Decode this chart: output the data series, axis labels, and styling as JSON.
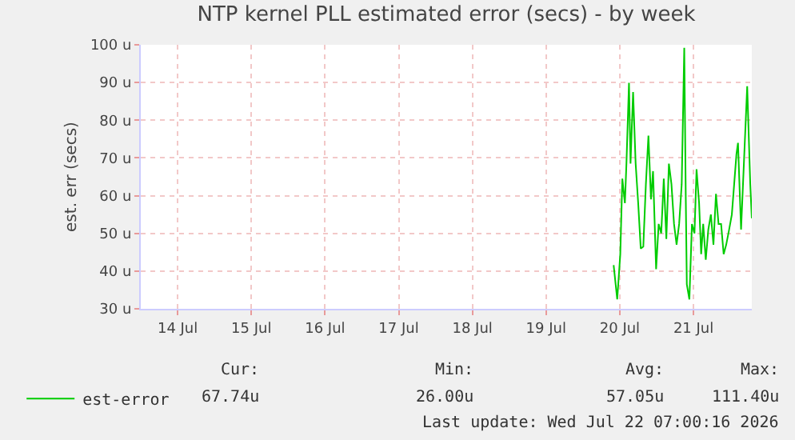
{
  "chart_data": {
    "type": "line",
    "title": "NTP kernel PLL estimated error (secs) - by week",
    "ylabel": "est. err (secs)",
    "x": [
      "2026-07-20T10:00",
      "2026-07-20T11:10",
      "2026-07-20T12:10",
      "2026-07-20T12:50",
      "2026-07-20T13:40",
      "2026-07-20T14:10",
      "2026-07-20T15:00",
      "2026-07-20T15:30",
      "2026-07-20T16:20",
      "2026-07-20T17:10",
      "2026-07-20T18:00",
      "2026-07-20T18:50",
      "2026-07-20T19:40",
      "2026-07-20T20:30",
      "2026-07-20T21:20",
      "2026-07-20T22:10",
      "2026-07-20T22:50",
      "2026-07-20T23:50",
      "2026-07-21T00:40",
      "2026-07-21T01:30",
      "2026-07-21T02:20",
      "2026-07-21T03:10",
      "2026-07-21T04:00",
      "2026-07-21T04:50",
      "2026-07-21T05:40",
      "2026-07-21T06:30",
      "2026-07-21T07:20",
      "2026-07-21T08:10",
      "2026-07-21T09:00",
      "2026-07-21T09:30",
      "2026-07-21T09:50",
      "2026-07-21T10:40",
      "2026-07-21T11:30",
      "2026-07-21T12:20",
      "2026-07-21T13:00",
      "2026-07-21T13:50",
      "2026-07-21T14:30",
      "2026-07-21T15:10",
      "2026-07-21T16:00",
      "2026-07-21T16:50",
      "2026-07-21T17:40",
      "2026-07-21T18:30",
      "2026-07-21T19:20",
      "2026-07-21T20:10",
      "2026-07-21T21:00",
      "2026-07-21T21:50",
      "2026-07-21T22:40",
      "2026-07-21T23:30",
      "2026-07-22T00:30",
      "2026-07-22T02:00",
      "2026-07-22T02:30",
      "2026-07-22T03:30",
      "2026-07-22T05:30",
      "2026-07-22T06:30",
      "2026-07-22T07:00"
    ],
    "series": [
      {
        "name": "est-error",
        "color": "#00cc00",
        "values": [
          41.6,
          32.5,
          44.5,
          64.5,
          58,
          68.5,
          89.9,
          68.5,
          87.5,
          68.5,
          58,
          46,
          46.5,
          63,
          75.9,
          59,
          66.5,
          40.5,
          52.5,
          50,
          64.5,
          48.5,
          68.5,
          63,
          52.5,
          47,
          52.5,
          63,
          99.2,
          59,
          36.5,
          32.5,
          52.5,
          50,
          67,
          58,
          44.5,
          52.5,
          43,
          51,
          55,
          47,
          60.5,
          52.5,
          52.5,
          44.5,
          47,
          50.5,
          55,
          71,
          74,
          51,
          89,
          63,
          54
        ]
      }
    ],
    "xlim": [
      "2026-07-14T00:00",
      "2026-07-22T07:00"
    ],
    "xticks": [
      {
        "value": "2026-07-14T12:00",
        "label": "14 Jul"
      },
      {
        "value": "2026-07-15T12:00",
        "label": "15 Jul"
      },
      {
        "value": "2026-07-16T12:00",
        "label": "16 Jul"
      },
      {
        "value": "2026-07-17T12:00",
        "label": "17 Jul"
      },
      {
        "value": "2026-07-18T12:00",
        "label": "18 Jul"
      },
      {
        "value": "2026-07-19T12:00",
        "label": "19 Jul"
      },
      {
        "value": "2026-07-20T12:00",
        "label": "20 Jul"
      },
      {
        "value": "2026-07-21T12:00",
        "label": "21 Jul"
      }
    ],
    "ylim": [
      30,
      100
    ],
    "yticks": [
      {
        "value": 30,
        "label": "30 u"
      },
      {
        "value": 40,
        "label": "40 u"
      },
      {
        "value": 50,
        "label": "50 u"
      },
      {
        "value": 60,
        "label": "60 u"
      },
      {
        "value": 70,
        "label": "70 u"
      },
      {
        "value": 80,
        "label": "80 u"
      },
      {
        "value": 90,
        "label": "90 u"
      },
      {
        "value": 100,
        "label": "100 u"
      }
    ],
    "grid": true,
    "legend": "bottom left",
    "line_style": "solid",
    "marker": "none",
    "annotations": [
      "Cur:",
      "Min:",
      "Avg:",
      "Max:",
      "67.74u",
      "26.00u",
      "57.05u",
      "111.40u",
      "Last update: Wed Jul 22 07:00:16 2026"
    ]
  }
}
